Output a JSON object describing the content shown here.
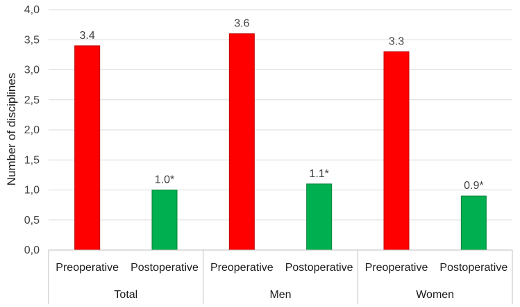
{
  "chart_data": {
    "type": "bar",
    "title": "",
    "ylabel": "Number of disciplines",
    "xlabel": "",
    "ylim": [
      0,
      4
    ],
    "yticks": [
      "0,0",
      "0,5",
      "1,0",
      "1,5",
      "2,0",
      "2,5",
      "3,0",
      "3,5",
      "4,0"
    ],
    "grid": true,
    "legend": "none",
    "groups": [
      {
        "label": "Total",
        "bars": [
          {
            "category": "Preoperative",
            "value": 3.4,
            "label": "3.4",
            "color": "#ff0000"
          },
          {
            "category": "Postoperative",
            "value": 1.0,
            "label": "1.0*",
            "color": "#00b050"
          }
        ]
      },
      {
        "label": "Men",
        "bars": [
          {
            "category": "Preoperative",
            "value": 3.6,
            "label": "3.6",
            "color": "#ff0000"
          },
          {
            "category": "Postoperative",
            "value": 1.1,
            "label": "1.1*",
            "color": "#00b050"
          }
        ]
      },
      {
        "label": "Women",
        "bars": [
          {
            "category": "Preoperative",
            "value": 3.3,
            "label": "3.3",
            "color": "#ff0000"
          },
          {
            "category": "Postoperative",
            "value": 0.9,
            "label": "0.9*",
            "color": "#00b050"
          }
        ]
      }
    ]
  }
}
